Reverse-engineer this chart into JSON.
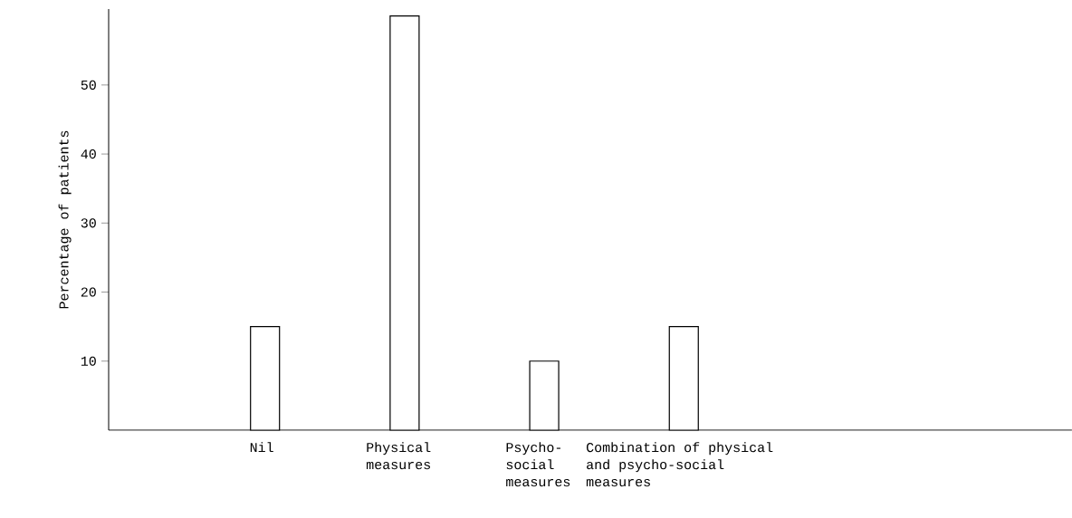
{
  "chart_data": {
    "type": "bar",
    "ylabel": "Percentage of patients",
    "categories": [
      "Nil",
      "Physical measures",
      "Psycho-social measures",
      "Combination of physical and psycho-social measures"
    ],
    "values": [
      15,
      60,
      10,
      15
    ],
    "color": "#ffffff",
    "ylim": [
      0,
      61
    ],
    "yticks": [
      10,
      20,
      30,
      40,
      50
    ],
    "grid": false
  }
}
